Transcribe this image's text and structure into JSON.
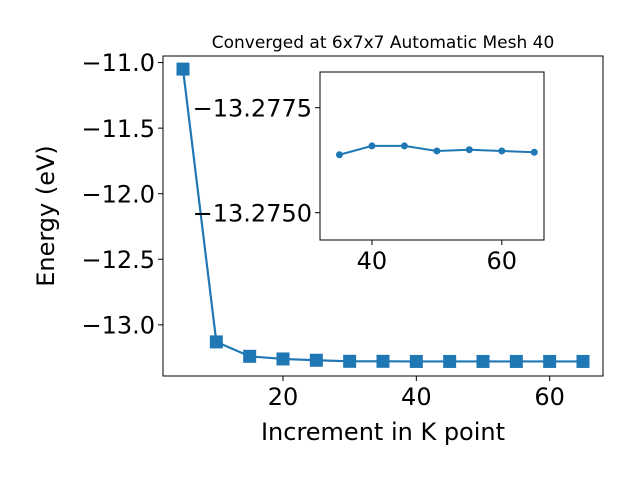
{
  "chart_data": [
    {
      "type": "line",
      "title": "Converged at 6x7x7 Automatic Mesh 40",
      "xlabel": "Increment in K point",
      "ylabel": "Energy (eV)",
      "xlim": [
        2.0,
        68.0
      ],
      "ylim": [
        -13.39,
        -10.95
      ],
      "grid": false,
      "x_ticks": [
        20,
        40,
        60
      ],
      "x_tick_labels": [
        "20",
        "40",
        "60"
      ],
      "y_ticks": [
        -11.0,
        -11.5,
        -12.0,
        -12.5,
        -13.0
      ],
      "y_tick_labels": [
        "−11.0",
        "−11.5",
        "−12.0",
        "−12.5",
        "−13.0"
      ],
      "series": [
        {
          "color": "#1f77b4",
          "marker": "square",
          "x": [
            5,
            10,
            15,
            20,
            25,
            30,
            35,
            40,
            45,
            50,
            55,
            60,
            65
          ],
          "y": [
            -11.05,
            -13.13,
            -13.24,
            -13.26,
            -13.27,
            -13.278,
            -13.278,
            -13.279,
            -13.279,
            -13.279,
            -13.279,
            -13.279,
            -13.279
          ]
        }
      ]
    },
    {
      "type": "line",
      "title": "",
      "xlabel": "",
      "ylabel": "",
      "xlim": [
        32.0,
        66.5
      ],
      "ylim": [
        -13.27435,
        -13.27835
      ],
      "grid": false,
      "x_ticks": [
        40,
        60
      ],
      "x_tick_labels": [
        "40",
        "60"
      ],
      "y_ticks": [
        -13.2775,
        -13.275
      ],
      "y_tick_labels": [
        "−13.2775",
        "−13.2750"
      ],
      "series": [
        {
          "color": "#1f77b4",
          "marker": "circle",
          "x": [
            35,
            40,
            45,
            50,
            55,
            60,
            65
          ],
          "y": [
            -13.27638,
            -13.27659,
            -13.27659,
            -13.27647,
            -13.2765,
            -13.27647,
            -13.27644
          ]
        }
      ]
    }
  ]
}
